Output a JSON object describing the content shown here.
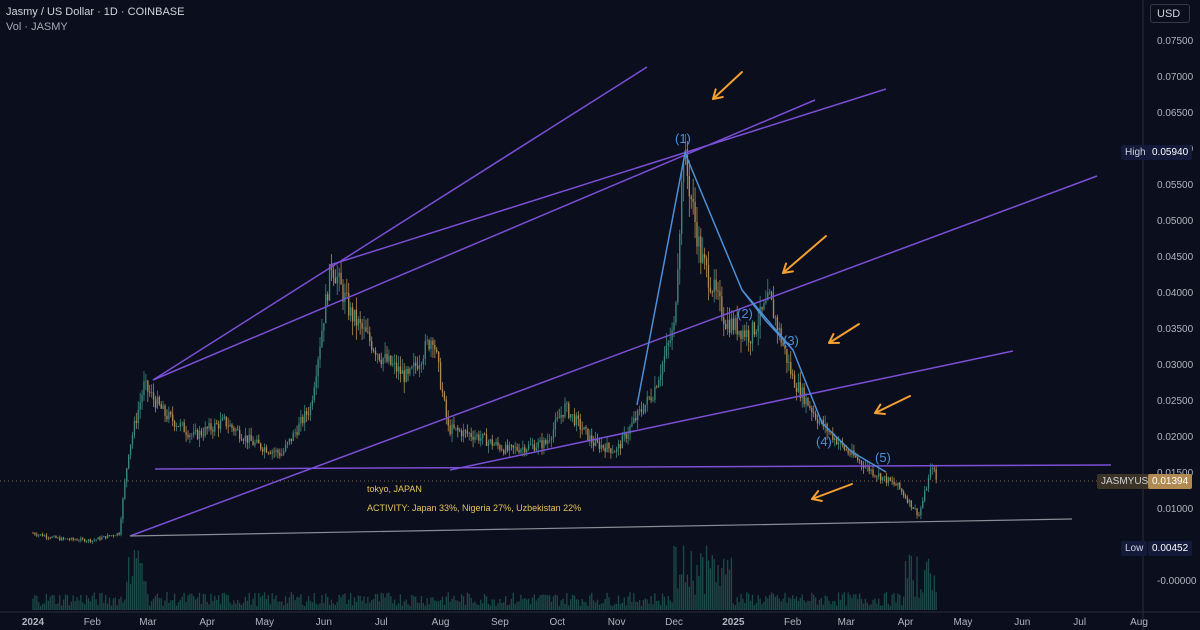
{
  "header": {
    "title": "Jasmy / US Dollar · 1D · COINBASE",
    "volume_label": "Vol · JASMY"
  },
  "currency_button": "USD",
  "price_tags": {
    "high_label": "High",
    "high_value": "0.05940",
    "current_label": "JASMYUSD",
    "current_value": "0.01394",
    "low_label": "Low",
    "low_value": "0.00452"
  },
  "annotations": {
    "location": "tokyo, JAPAN",
    "activity": "ACTIVITY: Japan 33%, Nigeria 27%, Uzbekistan 22%"
  },
  "colors": {
    "background": "#0b0e1d",
    "up_candle": "#3b8a7d",
    "down_candle": "#b08a50",
    "trendline": "#7b4fd6",
    "wave_line": "#4d8fd6",
    "arrow": "#f5a030",
    "volume": "#1f5a52"
  },
  "chart_data": {
    "type": "candlestick",
    "title": "Jasmy / US Dollar · 1D · COINBASE",
    "x_ticks": [
      "2024",
      "Feb",
      "Mar",
      "Apr",
      "May",
      "Jun",
      "Jul",
      "Aug",
      "Sep",
      "Oct",
      "Nov",
      "Dec",
      "2025",
      "Feb",
      "Mar",
      "Apr",
      "May",
      "Jun",
      "Jul",
      "Aug"
    ],
    "y_ticks": [
      "0.07500",
      "0.07000",
      "0.06500",
      "0.06000",
      "0.05500",
      "0.05000",
      "0.04500",
      "0.04000",
      "0.03500",
      "0.03000",
      "0.02500",
      "0.02000",
      "0.01500",
      "0.01000",
      "-0.00000"
    ],
    "ylim": [
      -0.0035,
      0.078
    ],
    "price_path": [
      [
        "2024-01-01",
        0.0065
      ],
      [
        "2024-01-15",
        0.0057
      ],
      [
        "2024-02-01",
        0.0055
      ],
      [
        "2024-02-15",
        0.0065
      ],
      [
        "2024-02-20",
        0.018
      ],
      [
        "2024-02-28",
        0.027
      ],
      [
        "2024-03-10",
        0.023
      ],
      [
        "2024-03-25",
        0.02
      ],
      [
        "2024-04-10",
        0.022
      ],
      [
        "2024-04-25",
        0.019
      ],
      [
        "2024-05-10",
        0.0175
      ],
      [
        "2024-05-25",
        0.024
      ],
      [
        "2024-06-05",
        0.044
      ],
      [
        "2024-06-15",
        0.037
      ],
      [
        "2024-07-01",
        0.031
      ],
      [
        "2024-07-15",
        0.028
      ],
      [
        "2024-07-28",
        0.034
      ],
      [
        "2024-08-05",
        0.021
      ],
      [
        "2024-08-20",
        0.02
      ],
      [
        "2024-09-05",
        0.018
      ],
      [
        "2024-09-25",
        0.019
      ],
      [
        "2024-10-05",
        0.024
      ],
      [
        "2024-10-20",
        0.019
      ],
      [
        "2024-11-01",
        0.018
      ],
      [
        "2024-11-10",
        0.022
      ],
      [
        "2024-11-20",
        0.026
      ],
      [
        "2024-12-01",
        0.035
      ],
      [
        "2024-12-06",
        0.0594
      ],
      [
        "2024-12-15",
        0.045
      ],
      [
        "2024-12-28",
        0.036
      ],
      [
        "2025-01-10",
        0.034
      ],
      [
        "2025-01-20",
        0.039
      ],
      [
        "2025-02-01",
        0.028
      ],
      [
        "2025-02-15",
        0.022
      ],
      [
        "2025-03-01",
        0.018
      ],
      [
        "2025-03-15",
        0.015
      ],
      [
        "2025-03-28",
        0.013
      ],
      [
        "2025-04-08",
        0.009
      ],
      [
        "2025-04-15",
        0.016
      ],
      [
        "2025-04-17",
        0.0139
      ]
    ],
    "high": 0.0594,
    "low": 0.00452,
    "last": 0.01394,
    "wave_labels": [
      "(1)",
      "(2)",
      "(3)",
      "(4)",
      "(5)"
    ],
    "grid": false
  }
}
